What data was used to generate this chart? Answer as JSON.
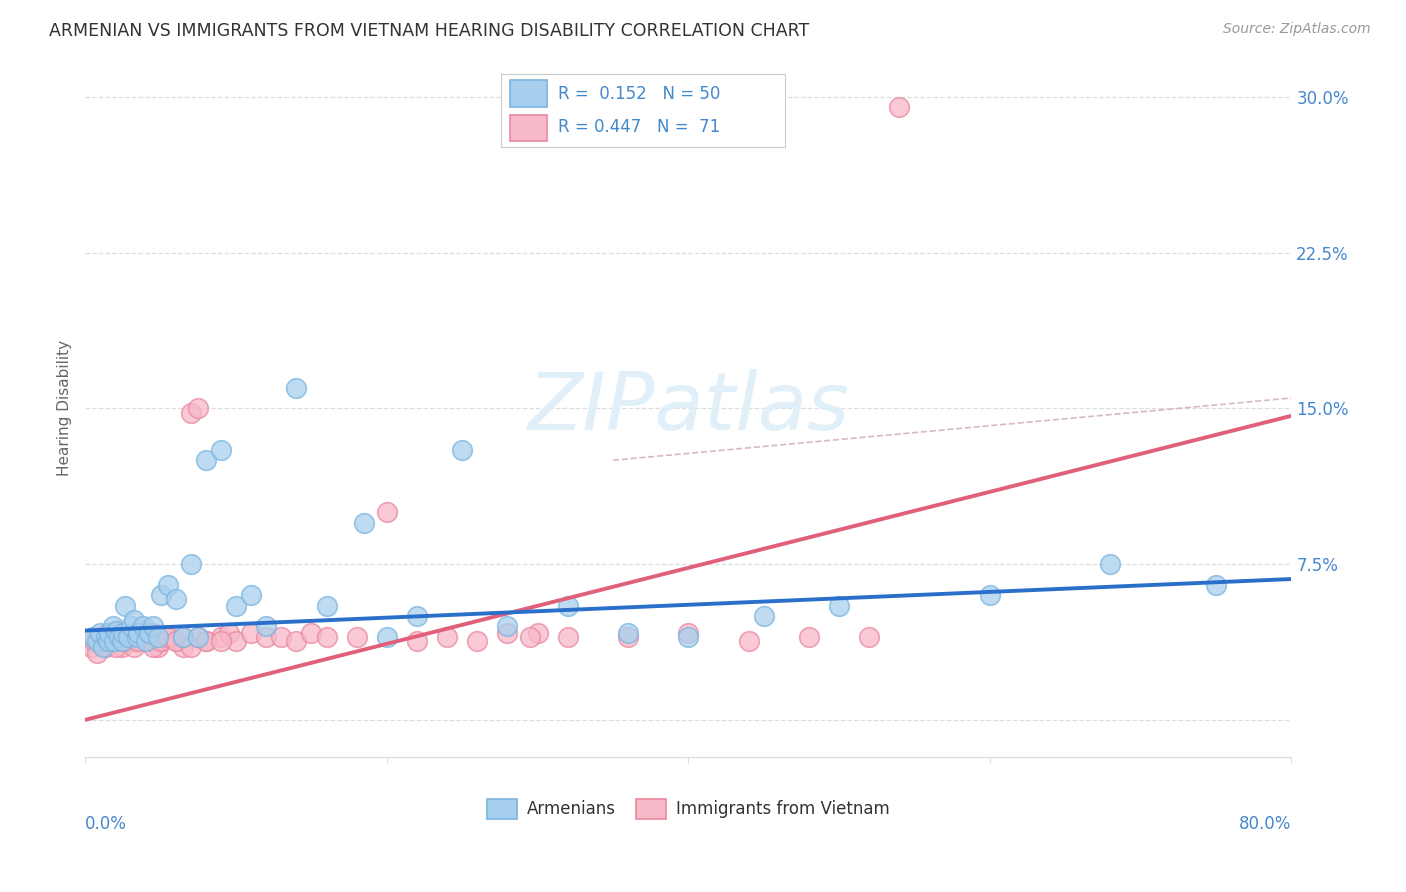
{
  "title": "ARMENIAN VS IMMIGRANTS FROM VIETNAM HEARING DISABILITY CORRELATION CHART",
  "source": "Source: ZipAtlas.com",
  "ylabel": "Hearing Disability",
  "xmin": 0.0,
  "xmax": 0.8,
  "ymin": -0.018,
  "ymax": 0.318,
  "blue_scatter_color": "#a8d0ee",
  "blue_scatter_edge": "#7ab5e0",
  "pink_scatter_color": "#f7b8c8",
  "pink_scatter_edge": "#e88aa0",
  "blue_line_color": "#2a6fc9",
  "pink_line_color": "#e0607a",
  "dash_line_color": "#e8a0b0",
  "watermark_color": "#ddeef8",
  "title_color": "#333333",
  "source_color": "#999999",
  "tick_color": "#4488cc",
  "grid_color": "#dddddd",
  "arm_x": [
    0.005,
    0.008,
    0.01,
    0.012,
    0.014,
    0.015,
    0.016,
    0.018,
    0.019,
    0.02,
    0.022,
    0.024,
    0.025,
    0.026,
    0.028,
    0.03,
    0.032,
    0.034,
    0.035,
    0.038,
    0.04,
    0.042,
    0.045,
    0.048,
    0.05,
    0.055,
    0.06,
    0.065,
    0.07,
    0.075,
    0.08,
    0.09,
    0.1,
    0.11,
    0.12,
    0.14,
    0.16,
    0.185,
    0.2,
    0.22,
    0.25,
    0.28,
    0.32,
    0.36,
    0.4,
    0.45,
    0.5,
    0.6,
    0.68,
    0.75
  ],
  "arm_y": [
    0.04,
    0.038,
    0.042,
    0.035,
    0.04,
    0.038,
    0.042,
    0.045,
    0.038,
    0.043,
    0.04,
    0.038,
    0.042,
    0.055,
    0.04,
    0.045,
    0.048,
    0.04,
    0.042,
    0.045,
    0.038,
    0.042,
    0.045,
    0.04,
    0.06,
    0.065,
    0.058,
    0.04,
    0.075,
    0.04,
    0.125,
    0.13,
    0.055,
    0.06,
    0.045,
    0.16,
    0.055,
    0.095,
    0.04,
    0.05,
    0.13,
    0.045,
    0.055,
    0.042,
    0.04,
    0.05,
    0.055,
    0.06,
    0.075,
    0.065
  ],
  "viet_x": [
    0.004,
    0.006,
    0.008,
    0.01,
    0.012,
    0.014,
    0.015,
    0.016,
    0.018,
    0.02,
    0.022,
    0.024,
    0.025,
    0.026,
    0.028,
    0.03,
    0.032,
    0.034,
    0.035,
    0.038,
    0.04,
    0.042,
    0.045,
    0.048,
    0.05,
    0.055,
    0.06,
    0.065,
    0.07,
    0.075,
    0.08,
    0.09,
    0.095,
    0.1,
    0.11,
    0.12,
    0.13,
    0.14,
    0.15,
    0.16,
    0.18,
    0.2,
    0.22,
    0.24,
    0.26,
    0.28,
    0.3,
    0.32,
    0.36,
    0.4,
    0.44,
    0.48,
    0.52,
    0.01,
    0.015,
    0.02,
    0.025,
    0.03,
    0.035,
    0.04,
    0.045,
    0.05,
    0.055,
    0.06,
    0.065,
    0.07,
    0.075,
    0.08,
    0.09,
    0.54,
    0.295
  ],
  "viet_y": [
    0.035,
    0.038,
    0.032,
    0.04,
    0.038,
    0.035,
    0.042,
    0.04,
    0.038,
    0.042,
    0.04,
    0.035,
    0.038,
    0.042,
    0.04,
    0.038,
    0.035,
    0.04,
    0.038,
    0.042,
    0.04,
    0.038,
    0.042,
    0.035,
    0.038,
    0.04,
    0.038,
    0.035,
    0.148,
    0.15,
    0.038,
    0.04,
    0.042,
    0.038,
    0.042,
    0.04,
    0.04,
    0.038,
    0.042,
    0.04,
    0.04,
    0.1,
    0.038,
    0.04,
    0.038,
    0.042,
    0.042,
    0.04,
    0.04,
    0.042,
    0.038,
    0.04,
    0.04,
    0.038,
    0.04,
    0.035,
    0.038,
    0.04,
    0.038,
    0.04,
    0.035,
    0.038,
    0.04,
    0.038,
    0.04,
    0.035,
    0.04,
    0.038,
    0.038,
    0.295,
    0.04
  ]
}
